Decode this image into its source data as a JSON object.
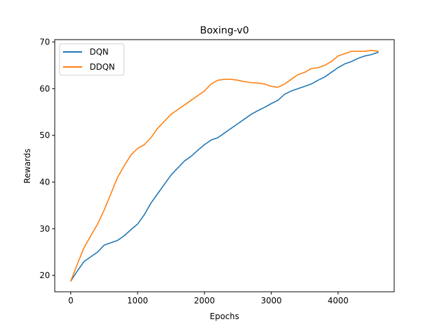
{
  "chart_data": {
    "type": "line",
    "title": "Boxing-v0",
    "xlabel": "Epochs",
    "ylabel": "Rewards",
    "xlim": [
      -240,
      4840
    ],
    "ylim": [
      16.5,
      70.5
    ],
    "xticks": [
      0,
      1000,
      2000,
      3000,
      4000
    ],
    "yticks": [
      20,
      30,
      40,
      50,
      60,
      70
    ],
    "grid": false,
    "legend_position": "top-left",
    "series": [
      {
        "name": "DQN",
        "color": "#1f77b4",
        "x": [
          0,
          100,
          200,
          300,
          400,
          500,
          600,
          700,
          800,
          900,
          1000,
          1100,
          1200,
          1300,
          1400,
          1500,
          1600,
          1700,
          1800,
          1900,
          2000,
          2100,
          2200,
          2300,
          2400,
          2500,
          2600,
          2700,
          2800,
          2900,
          3000,
          3100,
          3200,
          3300,
          3400,
          3500,
          3600,
          3700,
          3800,
          3900,
          4000,
          4100,
          4200,
          4300,
          4400,
          4500,
          4600
        ],
        "values": [
          18.8,
          21.0,
          23.0,
          24.0,
          25.0,
          26.5,
          27.0,
          27.5,
          28.5,
          29.8,
          31.0,
          33.0,
          35.5,
          37.5,
          39.5,
          41.5,
          43.0,
          44.5,
          45.5,
          46.8,
          48.0,
          49.0,
          49.5,
          50.5,
          51.5,
          52.5,
          53.5,
          54.5,
          55.3,
          56.0,
          56.8,
          57.5,
          58.8,
          59.5,
          60.0,
          60.5,
          61.0,
          61.8,
          62.5,
          63.5,
          64.5,
          65.3,
          65.8,
          66.5,
          67.0,
          67.3,
          67.8
        ]
      },
      {
        "name": "DDQN",
        "color": "#ff7f0e",
        "x": [
          0,
          100,
          200,
          300,
          400,
          500,
          600,
          700,
          800,
          900,
          1000,
          1100,
          1200,
          1300,
          1400,
          1500,
          1600,
          1700,
          1800,
          1900,
          2000,
          2100,
          2200,
          2300,
          2400,
          2500,
          2600,
          2700,
          2800,
          2900,
          3000,
          3100,
          3200,
          3300,
          3400,
          3500,
          3600,
          3700,
          3800,
          3900,
          4000,
          4100,
          4200,
          4300,
          4400,
          4500,
          4600
        ],
        "values": [
          18.8,
          22.5,
          26.0,
          28.5,
          31.0,
          34.0,
          37.5,
          41.0,
          43.5,
          45.8,
          47.2,
          48.0,
          49.5,
          51.5,
          53.0,
          54.5,
          55.5,
          56.5,
          57.5,
          58.5,
          59.5,
          61.0,
          61.8,
          62.0,
          62.0,
          61.8,
          61.5,
          61.3,
          61.2,
          61.0,
          60.5,
          60.3,
          61.0,
          62.0,
          63.0,
          63.5,
          64.3,
          64.5,
          65.0,
          65.8,
          67.0,
          67.5,
          68.0,
          68.0,
          68.0,
          68.2,
          68.0
        ]
      }
    ]
  }
}
